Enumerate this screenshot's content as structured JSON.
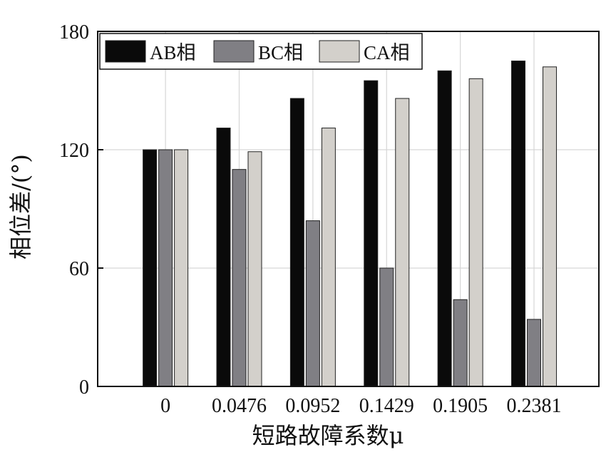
{
  "chart_data": {
    "type": "bar",
    "xlabel": "短路故障系数μ",
    "ylabel": "相位差/(°)",
    "ylim": [
      0,
      180
    ],
    "yticks": [
      "0",
      "60",
      "120",
      "180"
    ],
    "categories": [
      "0",
      "0.0476",
      "0.0952",
      "0.1429",
      "0.1905",
      "0.2381"
    ],
    "series": [
      {
        "name": "AB相",
        "color": "#0a0a0a",
        "values": [
          120,
          131,
          146,
          155,
          160,
          165
        ]
      },
      {
        "name": "BC相",
        "color": "#807f84",
        "values": [
          120,
          110,
          84,
          60,
          44,
          34
        ]
      },
      {
        "name": "CA相",
        "color": "#d3d0cb",
        "values": [
          120,
          119,
          131,
          146,
          156,
          162
        ]
      }
    ],
    "grid": true,
    "legend_position": "top"
  }
}
